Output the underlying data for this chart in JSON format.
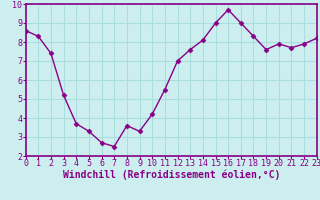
{
  "x": [
    0,
    1,
    2,
    3,
    4,
    5,
    6,
    7,
    8,
    9,
    10,
    11,
    12,
    13,
    14,
    15,
    16,
    17,
    18,
    19,
    20,
    21,
    22,
    23
  ],
  "y": [
    8.6,
    8.3,
    7.4,
    5.2,
    3.7,
    3.3,
    2.7,
    2.5,
    3.6,
    3.3,
    4.2,
    5.5,
    7.0,
    7.6,
    8.1,
    9.0,
    9.7,
    9.0,
    8.3,
    7.6,
    7.9,
    7.7,
    7.9,
    8.2
  ],
  "xlim": [
    0,
    23
  ],
  "ylim": [
    2,
    10
  ],
  "yticks": [
    2,
    3,
    4,
    5,
    6,
    7,
    8,
    9,
    10
  ],
  "xticks": [
    0,
    1,
    2,
    3,
    4,
    5,
    6,
    7,
    8,
    9,
    10,
    11,
    12,
    13,
    14,
    15,
    16,
    17,
    18,
    19,
    20,
    21,
    22,
    23
  ],
  "xlabel": "Windchill (Refroidissement éolien,°C)",
  "line_color": "#880088",
  "marker": "D",
  "marker_size": 2.5,
  "bg_color": "#cceeee",
  "grid_color": "#aadddd",
  "xlabel_fontsize": 7,
  "tick_fontsize": 6,
  "spine_color": "#880088",
  "fig_bg": "#cceeee"
}
